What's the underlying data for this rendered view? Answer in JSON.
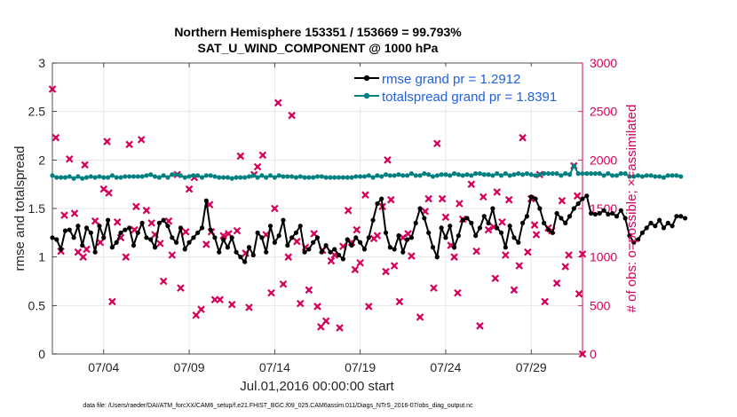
{
  "chart_data": {
    "type": "line",
    "title": "Northern Hemisphere 153351 / 153669 = 99.793%",
    "subtitle": "SAT_U_WIND_COMPONENT @ 1000 hPa",
    "xlabel": "Jul.01,2016 00:00:00 start",
    "ylabel_left": "rmse and totalspread",
    "ylabel_right": "# of obs: o=possible; ×=assimilated",
    "footer": "data file: /Users/raeder/DAI/ATM_forcXX/CAM6_setup/f.e21.FHIST_BGC.f09_025.CAM6assim.011/Diags_NTrS_2016-07/obs_diag_output.nc",
    "xlim": [
      1.0,
      32.0
    ],
    "x_ticks": [
      {
        "value": 4,
        "label": "07/04"
      },
      {
        "value": 9,
        "label": "07/09"
      },
      {
        "value": 14,
        "label": "07/14"
      },
      {
        "value": 19,
        "label": "07/19"
      },
      {
        "value": 24,
        "label": "07/24"
      },
      {
        "value": 29,
        "label": "07/29"
      }
    ],
    "ylim_left": [
      0,
      3
    ],
    "yticks_left": [
      "0",
      "0.5",
      "1",
      "1.5",
      "2",
      "2.5",
      "3"
    ],
    "ylim_right": [
      0,
      3000
    ],
    "yticks_right": [
      "0",
      "500",
      "1000",
      "1500",
      "2000",
      "2500",
      "3000"
    ],
    "grid": true,
    "legend_position": "top-right",
    "colors": {
      "rmse": "#000000",
      "spread": "#008080",
      "obs": "#d6005b",
      "right_axis": "#d6005b"
    },
    "x_step_days": 0.25,
    "series": [
      {
        "name": "rmse grand pr = 1.2912",
        "axis": "left",
        "marker": "filled-circle",
        "values": [
          1.2,
          1.18,
          1.08,
          1.27,
          1.28,
          1.2,
          1.32,
          1.12,
          1.3,
          1.25,
          1.05,
          1.32,
          1.2,
          1.38,
          1.1,
          1.15,
          1.25,
          1.28,
          1.3,
          1.12,
          1.25,
          1.35,
          1.2,
          1.18,
          1.1,
          1.35,
          1.38,
          1.32,
          1.2,
          1.15,
          1.3,
          1.08,
          1.15,
          1.2,
          1.25,
          1.3,
          1.58,
          1.28,
          1.2,
          1.05,
          1.18,
          1.1,
          1.2,
          1.05,
          1.0,
          0.95,
          1.1,
          1.02,
          1.25,
          1.2,
          1.05,
          1.32,
          1.15,
          1.22,
          1.38,
          1.12,
          1.2,
          1.25,
          1.32,
          1.05,
          1.08,
          1.15,
          1.2,
          1.05,
          1.12,
          1.05,
          1.08,
          1.02,
          0.98,
          1.18,
          1.12,
          1.2,
          1.15,
          1.08,
          1.2,
          1.38,
          1.55,
          1.6,
          1.25,
          1.1,
          1.08,
          1.22,
          1.05,
          1.18,
          1.2,
          1.35,
          1.5,
          1.4,
          1.25,
          1.1,
          1.0,
          1.3,
          1.2,
          1.32,
          1.1,
          1.22,
          1.38,
          1.4,
          1.35,
          1.22,
          1.3,
          1.42,
          1.35,
          1.5,
          1.3,
          1.25,
          1.1,
          1.32,
          1.2,
          1.15,
          1.35,
          1.42,
          1.62,
          1.6,
          1.5,
          1.35,
          1.28,
          1.25,
          1.45,
          1.4,
          1.35,
          1.42,
          1.5,
          1.55,
          1.6,
          1.63,
          1.45,
          1.44,
          1.45,
          1.48,
          1.44,
          1.45,
          1.42,
          1.48,
          1.4,
          1.22,
          1.15,
          1.18,
          1.25,
          1.3,
          1.35,
          1.32,
          1.38,
          1.3,
          1.35,
          1.32,
          1.42,
          1.42,
          1.4
        ]
      },
      {
        "name": "totalspread grand pr = 1.8391",
        "axis": "left",
        "marker": "filled-circle",
        "values": [
          1.84,
          1.82,
          1.82,
          1.82,
          1.83,
          1.81,
          1.83,
          1.81,
          1.82,
          1.83,
          1.82,
          1.83,
          1.82,
          1.82,
          1.84,
          1.82,
          1.82,
          1.83,
          1.83,
          1.83,
          1.83,
          1.83,
          1.84,
          1.85,
          1.83,
          1.82,
          1.84,
          1.82,
          1.85,
          1.85,
          1.84,
          1.82,
          1.83,
          1.84,
          1.84,
          1.82,
          1.84,
          1.84,
          1.83,
          1.82,
          1.82,
          1.82,
          1.81,
          1.82,
          1.82,
          1.82,
          1.83,
          1.84,
          1.82,
          1.84,
          1.82,
          1.84,
          1.82,
          1.84,
          1.83,
          1.83,
          1.83,
          1.82,
          1.83,
          1.82,
          1.82,
          1.82,
          1.83,
          1.83,
          1.82,
          1.82,
          1.82,
          1.82,
          1.82,
          1.82,
          1.82,
          1.83,
          1.83,
          1.83,
          1.84,
          1.82,
          1.84,
          1.83,
          1.85,
          1.84,
          1.84,
          1.85,
          1.84,
          1.84,
          1.86,
          1.84,
          1.84,
          1.86,
          1.85,
          1.83,
          1.84,
          1.85,
          1.85,
          1.84,
          1.86,
          1.85,
          1.84,
          1.85,
          1.84,
          1.86,
          1.86,
          1.85,
          1.85,
          1.84,
          1.86,
          1.84,
          1.86,
          1.84,
          1.85,
          1.86,
          1.85,
          1.86,
          1.85,
          1.84,
          1.85,
          1.86,
          1.86,
          1.86,
          1.86,
          1.84,
          1.86,
          1.85,
          1.94,
          1.86,
          1.86,
          1.86,
          1.86,
          1.86,
          1.86,
          1.84,
          1.86,
          1.84,
          1.84,
          1.86,
          1.86,
          1.83,
          1.83,
          1.84,
          1.83,
          1.84,
          1.84,
          1.83,
          1.83,
          1.82,
          1.84,
          1.84,
          1.84,
          1.83
        ]
      },
      {
        "name": "obs assimilated",
        "axis": "right",
        "marker": "x",
        "points": [
          [
            1.0,
            2730
          ],
          [
            1.2,
            2230
          ],
          [
            1.5,
            1060
          ],
          [
            1.7,
            1430
          ],
          [
            2.0,
            2010
          ],
          [
            2.3,
            1450
          ],
          [
            2.5,
            1050
          ],
          [
            2.8,
            1000
          ],
          [
            2.9,
            1950
          ],
          [
            3.0,
            1080
          ],
          [
            3.5,
            1370
          ],
          [
            3.8,
            1150
          ],
          [
            4.0,
            1700
          ],
          [
            4.2,
            2190
          ],
          [
            4.3,
            1660
          ],
          [
            4.5,
            540
          ],
          [
            4.8,
            1360
          ],
          [
            5.0,
            1200
          ],
          [
            5.3,
            1000
          ],
          [
            5.5,
            2160
          ],
          [
            5.8,
            1280
          ],
          [
            5.9,
            1520
          ],
          [
            6.2,
            2210
          ],
          [
            6.5,
            1480
          ],
          [
            6.8,
            1350
          ],
          [
            7.0,
            1230
          ],
          [
            7.3,
            1140
          ],
          [
            7.5,
            750
          ],
          [
            7.8,
            1370
          ],
          [
            8.0,
            1020
          ],
          [
            8.3,
            1850
          ],
          [
            8.5,
            680
          ],
          [
            8.8,
            1260
          ],
          [
            9.0,
            1700
          ],
          [
            9.3,
            1820
          ],
          [
            9.4,
            400
          ],
          [
            9.7,
            460
          ],
          [
            10.0,
            1130
          ],
          [
            10.2,
            1540
          ],
          [
            10.3,
            1260
          ],
          [
            10.5,
            560
          ],
          [
            10.8,
            560
          ],
          [
            11.0,
            1220
          ],
          [
            11.3,
            1240
          ],
          [
            11.5,
            510
          ],
          [
            11.8,
            1270
          ],
          [
            12.0,
            2040
          ],
          [
            12.3,
            1040
          ],
          [
            12.5,
            480
          ],
          [
            12.8,
            1850
          ],
          [
            13.0,
            1930
          ],
          [
            13.3,
            2050
          ],
          [
            13.5,
            1230
          ],
          [
            13.8,
            630
          ],
          [
            14.0,
            1500
          ],
          [
            14.2,
            2590
          ],
          [
            14.5,
            720
          ],
          [
            14.8,
            1000
          ],
          [
            15.0,
            2460
          ],
          [
            15.3,
            1160
          ],
          [
            15.5,
            520
          ],
          [
            15.8,
            1100
          ],
          [
            16.0,
            660
          ],
          [
            16.3,
            1240
          ],
          [
            16.5,
            490
          ],
          [
            16.7,
            280
          ],
          [
            16.8,
            1070
          ],
          [
            17.0,
            340
          ],
          [
            17.3,
            960
          ],
          [
            17.5,
            1020
          ],
          [
            17.8,
            270
          ],
          [
            18.0,
            1110
          ],
          [
            18.3,
            1480
          ],
          [
            18.5,
            1150
          ],
          [
            18.7,
            870
          ],
          [
            18.8,
            1280
          ],
          [
            19.0,
            940
          ],
          [
            19.3,
            1640
          ],
          [
            19.5,
            490
          ],
          [
            19.8,
            1190
          ],
          [
            20.0,
            1220
          ],
          [
            20.3,
            1520
          ],
          [
            20.5,
            850
          ],
          [
            20.6,
            2000
          ],
          [
            20.8,
            1590
          ],
          [
            21.0,
            910
          ],
          [
            21.3,
            540
          ],
          [
            21.5,
            1200
          ],
          [
            21.8,
            1240
          ],
          [
            22.0,
            1010
          ],
          [
            22.5,
            380
          ],
          [
            22.8,
            1470
          ],
          [
            23.0,
            1600
          ],
          [
            23.3,
            680
          ],
          [
            23.5,
            2170
          ],
          [
            23.8,
            1600
          ],
          [
            24.0,
            1410
          ],
          [
            24.3,
            1120
          ],
          [
            24.5,
            1000
          ],
          [
            24.7,
            630
          ],
          [
            24.8,
            1550
          ],
          [
            25.0,
            1390
          ],
          [
            25.5,
            1750
          ],
          [
            25.8,
            1060
          ],
          [
            26.0,
            290
          ],
          [
            26.2,
            1620
          ],
          [
            26.5,
            1280
          ],
          [
            26.8,
            1310
          ],
          [
            26.9,
            780
          ],
          [
            27.0,
            1670
          ],
          [
            27.3,
            1360
          ],
          [
            27.5,
            1020
          ],
          [
            27.7,
            1590
          ],
          [
            28.0,
            660
          ],
          [
            28.3,
            910
          ],
          [
            28.5,
            2230
          ],
          [
            28.8,
            1050
          ],
          [
            29.0,
            1600
          ],
          [
            29.2,
            1330
          ],
          [
            29.3,
            1230
          ],
          [
            29.5,
            1850
          ],
          [
            29.8,
            540
          ],
          [
            30.0,
            1300
          ],
          [
            30.2,
            1270
          ],
          [
            30.5,
            730
          ],
          [
            30.8,
            1580
          ],
          [
            31.0,
            900
          ],
          [
            31.2,
            1020
          ],
          [
            31.5,
            1940
          ],
          [
            31.7,
            1630
          ],
          [
            31.8,
            620
          ],
          [
            32.0,
            1030
          ],
          [
            32.0,
            0
          ]
        ]
      }
    ]
  }
}
